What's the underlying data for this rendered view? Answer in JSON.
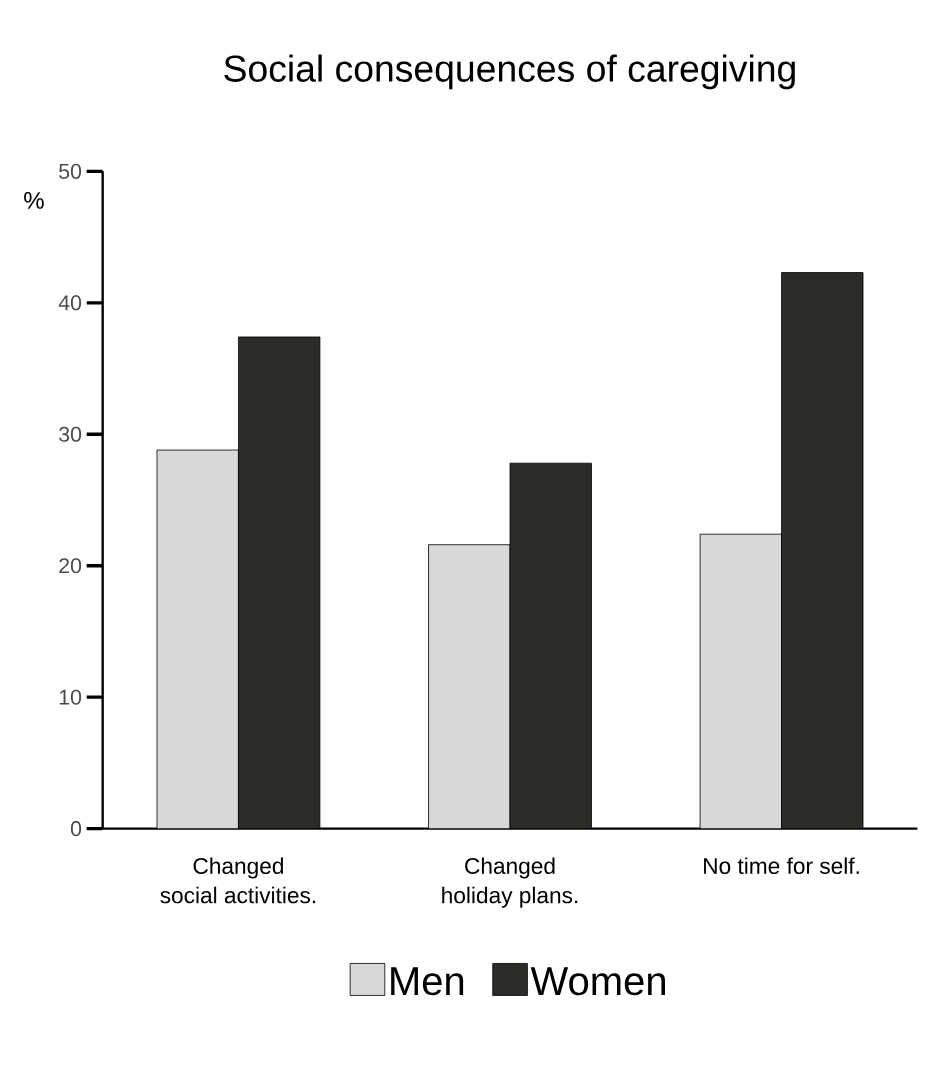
{
  "chart_data": {
    "type": "bar",
    "title": "Social consequences of caregiving",
    "ylabel": "%",
    "categories": [
      "Changed\nsocial activities.",
      "Changed\nholiday plans.",
      "No time for self."
    ],
    "series": [
      {
        "name": "Men",
        "color": "#d8d8d8",
        "values": [
          28.8,
          21.6,
          22.4
        ]
      },
      {
        "name": "Women",
        "color": "#2e2c28",
        "values": [
          37.4,
          27.8,
          42.3
        ]
      }
    ],
    "ylim": [
      0,
      50
    ],
    "yticks": [
      0,
      10,
      20,
      30,
      40,
      50
    ],
    "grid": false,
    "legend": "bottom"
  }
}
